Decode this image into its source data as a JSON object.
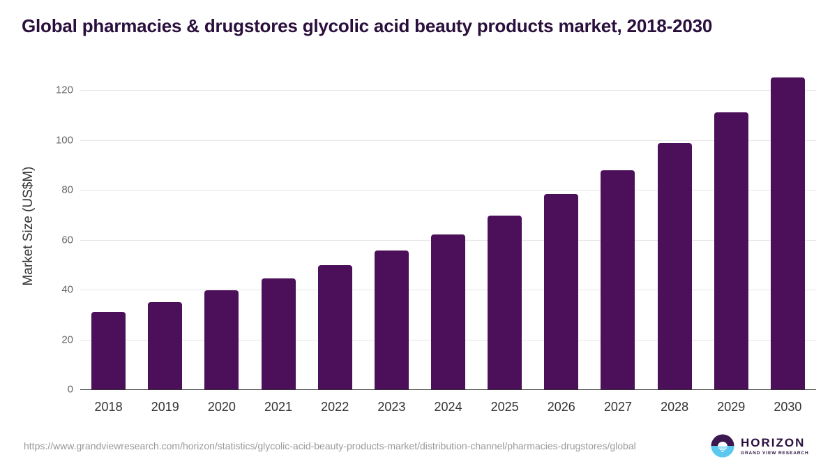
{
  "title": "Global pharmacies & drugstores glycolic acid beauty products market, 2018-2030",
  "colors": {
    "bar": "#4b1059",
    "title": "#2a0f3c",
    "grid": "#e6e6e6",
    "axis": "#333333"
  },
  "source_url": "https://www.grandviewresearch.com/horizon/statistics/glycolic-acid-beauty-products-market/distribution-channel/pharmacies-drugstores/global",
  "logo": {
    "name": "HORIZON",
    "sub": "GRAND VIEW RESEARCH"
  },
  "chart_data": {
    "type": "bar",
    "title": "Global pharmacies & drugstores glycolic acid beauty products market, 2018-2030",
    "xlabel": "",
    "ylabel": "Market Size (US$M)",
    "categories": [
      "2018",
      "2019",
      "2020",
      "2021",
      "2022",
      "2023",
      "2024",
      "2025",
      "2026",
      "2027",
      "2028",
      "2029",
      "2030"
    ],
    "values": [
      31.0,
      35.0,
      39.7,
      44.5,
      49.8,
      55.7,
      62.1,
      69.6,
      78.3,
      87.8,
      98.7,
      111.0,
      125.0
    ],
    "ylim": [
      0,
      120
    ],
    "yticks": [
      "0",
      "20",
      "40",
      "60",
      "80",
      "100",
      "120"
    ],
    "grid": true,
    "legend": null
  }
}
